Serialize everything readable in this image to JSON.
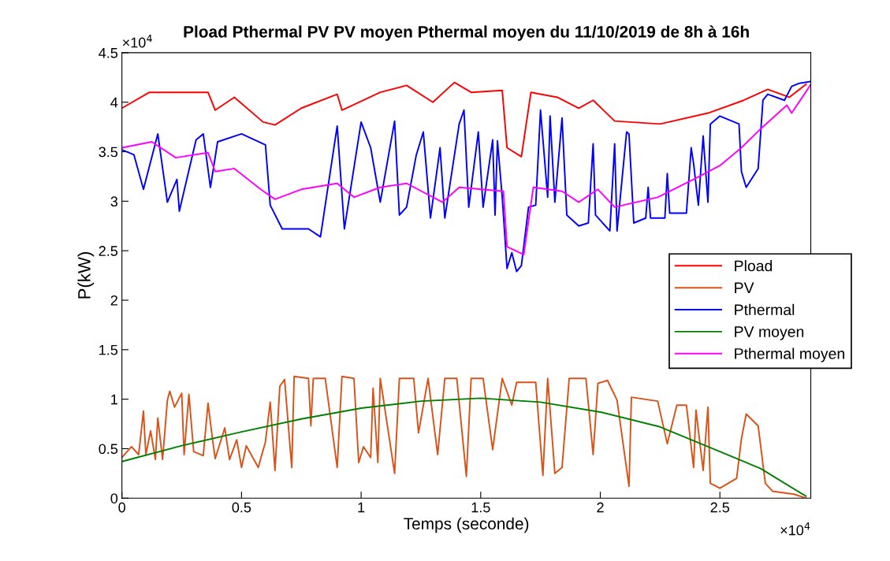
{
  "chart_data": {
    "type": "line",
    "title": "Pload Pthermal PV PV moyen Pthermal moyen du 11/10/2019 de 8h à 16h",
    "xlabel": "Temps (seconde)",
    "ylabel": "P(kW)",
    "annotations": [
      "×10$^{4}$",
      "×10$^{4}$"
    ],
    "xlim": [
      0,
      2.88
    ],
    "ylim": [
      0,
      4.5
    ],
    "xticks": [
      0,
      0.5,
      1,
      1.5,
      2,
      2.5
    ],
    "yticks": [
      0,
      0.5,
      1,
      1.5,
      2,
      2.5,
      3,
      3.5,
      4,
      4.5
    ],
    "grid": false,
    "legend": "right",
    "marker": "none",
    "line_style": "solid",
    "series": [
      {
        "name": "Pload",
        "color": "#ff0000",
        "x": [
          0,
          0.115,
          0.36,
          0.39,
          0.47,
          0.59,
          0.64,
          0.75,
          0.9,
          0.92,
          1.08,
          1.19,
          1.3,
          1.39,
          1.46,
          1.59,
          1.61,
          1.67,
          1.71,
          1.82,
          1.91,
          1.97,
          2.06,
          2.25,
          2.45,
          2.6,
          2.7,
          2.79,
          2.86
        ],
        "values": [
          3.94,
          4.1,
          4.1,
          3.92,
          4.05,
          3.8,
          3.77,
          3.94,
          4.08,
          3.92,
          4.1,
          4.17,
          4.0,
          4.2,
          4.1,
          4.12,
          3.54,
          3.45,
          4.1,
          4.05,
          3.94,
          4.02,
          3.81,
          3.78,
          3.89,
          4.02,
          4.13,
          4.05,
          4.18
        ]
      },
      {
        "name": "PV",
        "color": "#d95319",
        "x": [
          0,
          0.04,
          0.07,
          0.09,
          0.1,
          0.12,
          0.14,
          0.15,
          0.17,
          0.19,
          0.2,
          0.22,
          0.25,
          0.26,
          0.28,
          0.3,
          0.34,
          0.36,
          0.38,
          0.39,
          0.43,
          0.45,
          0.48,
          0.5,
          0.52,
          0.57,
          0.6,
          0.62,
          0.64,
          0.66,
          0.68,
          0.71,
          0.72,
          0.78,
          0.79,
          0.8,
          0.85,
          0.9,
          0.92,
          0.97,
          0.99,
          1.01,
          1.04,
          1.05,
          1.07,
          1.08,
          1.14,
          1.16,
          1.22,
          1.24,
          1.28,
          1.32,
          1.35,
          1.4,
          1.44,
          1.46,
          1.51,
          1.55,
          1.59,
          1.63,
          1.65,
          1.73,
          1.76,
          1.78,
          1.81,
          1.84,
          1.87,
          1.94,
          1.97,
          1.99,
          2.03,
          2.07,
          2.12,
          2.13,
          2.24,
          2.28,
          2.32,
          2.36,
          2.39,
          2.4,
          2.43,
          2.45,
          2.46,
          2.5,
          2.57,
          2.59,
          2.61,
          2.66,
          2.69,
          2.72,
          2.81,
          2.86
        ],
        "values": [
          0.41,
          0.52,
          0.44,
          0.88,
          0.44,
          0.68,
          0.39,
          0.81,
          0.39,
          0.99,
          1.08,
          0.92,
          1.06,
          0.44,
          1.05,
          0.47,
          0.43,
          0.96,
          0.57,
          0.4,
          0.71,
          0.39,
          0.59,
          0.31,
          0.53,
          0.31,
          0.57,
          0.97,
          0.28,
          1.13,
          1.2,
          0.31,
          1.23,
          1.21,
          0.73,
          1.21,
          1.21,
          0.31,
          1.23,
          1.21,
          0.36,
          0.52,
          0.41,
          1.11,
          0.36,
          1.21,
          0.25,
          1.21,
          1.21,
          0.66,
          1.21,
          0.44,
          1.21,
          1.21,
          0.22,
          1.21,
          1.21,
          0.49,
          1.21,
          0.94,
          1.17,
          1.17,
          0.23,
          1.21,
          0.25,
          0.31,
          1.21,
          1.21,
          0.44,
          1.16,
          1.19,
          0.99,
          0.12,
          1.02,
          0.98,
          0.55,
          0.94,
          0.94,
          0.31,
          0.89,
          0.28,
          0.92,
          0.15,
          0.1,
          0.2,
          0.6,
          0.85,
          0.73,
          0.15,
          0.07,
          0.04,
          0.0
        ]
      },
      {
        "name": "Pthermal",
        "color": "#0000ff",
        "x": [
          0,
          0.05,
          0.09,
          0.15,
          0.19,
          0.23,
          0.24,
          0.31,
          0.34,
          0.37,
          0.4,
          0.5,
          0.6,
          0.62,
          0.67,
          0.78,
          0.83,
          0.9,
          0.93,
          1.0,
          1.04,
          1.08,
          1.14,
          1.16,
          1.19,
          1.23,
          1.26,
          1.29,
          1.33,
          1.35,
          1.41,
          1.43,
          1.45,
          1.49,
          1.51,
          1.55,
          1.56,
          1.57,
          1.59,
          1.61,
          1.63,
          1.65,
          1.67,
          1.7,
          1.73,
          1.75,
          1.78,
          1.79,
          1.81,
          1.84,
          1.86,
          1.91,
          1.95,
          1.97,
          1.98,
          2.04,
          2.06,
          2.07,
          2.11,
          2.12,
          2.14,
          2.19,
          2.2,
          2.21,
          2.27,
          2.28,
          2.29,
          2.36,
          2.38,
          2.39,
          2.41,
          2.43,
          2.45,
          2.46,
          2.5,
          2.58,
          2.59,
          2.61,
          2.66,
          2.68,
          2.7,
          2.77,
          2.8,
          2.83,
          2.88
        ],
        "values": [
          3.52,
          3.47,
          3.12,
          3.68,
          2.99,
          3.22,
          2.9,
          3.62,
          3.68,
          3.14,
          3.6,
          3.68,
          3.57,
          2.96,
          2.72,
          2.72,
          2.64,
          3.76,
          2.72,
          3.8,
          3.54,
          2.99,
          3.81,
          2.86,
          2.94,
          3.46,
          3.7,
          2.83,
          3.54,
          2.83,
          3.78,
          3.92,
          2.94,
          3.7,
          2.94,
          3.62,
          2.86,
          3.61,
          3.04,
          2.32,
          2.48,
          2.29,
          2.35,
          2.94,
          2.96,
          3.92,
          3.04,
          3.86,
          2.99,
          3.84,
          2.86,
          2.75,
          2.78,
          3.58,
          2.86,
          2.7,
          3.58,
          2.7,
          3.7,
          3.68,
          2.78,
          2.83,
          3.14,
          2.83,
          2.83,
          3.28,
          2.88,
          2.88,
          3.54,
          3.38,
          2.96,
          3.66,
          2.99,
          3.78,
          3.86,
          3.78,
          3.3,
          3.14,
          3.33,
          4.02,
          4.08,
          4.02,
          4.16,
          4.19,
          4.21
        ]
      },
      {
        "name": "PV moyen",
        "color": "#008000",
        "x": [
          0,
          0.25,
          0.5,
          0.75,
          1.0,
          1.25,
          1.5,
          1.75,
          2.0,
          2.25,
          2.5,
          2.67,
          2.86
        ],
        "values": [
          0.37,
          0.53,
          0.67,
          0.8,
          0.91,
          0.98,
          1.01,
          0.97,
          0.87,
          0.72,
          0.47,
          0.3,
          0.02
        ]
      },
      {
        "name": "Pthermal moyen",
        "color": "#ff00ff",
        "x": [
          0,
          0.125,
          0.225,
          0.36,
          0.39,
          0.47,
          0.58,
          0.64,
          0.75,
          0.9,
          0.97,
          1.08,
          1.19,
          1.34,
          1.41,
          1.595,
          1.61,
          1.68,
          1.72,
          1.84,
          1.91,
          1.99,
          2.06,
          2.24,
          2.39,
          2.5,
          2.59,
          2.67,
          2.78,
          2.8,
          2.88
        ],
        "values": [
          3.54,
          3.6,
          3.44,
          3.49,
          3.3,
          3.33,
          3.12,
          3.02,
          3.12,
          3.18,
          3.04,
          3.14,
          3.18,
          2.99,
          3.14,
          3.1,
          2.54,
          2.46,
          3.14,
          3.1,
          2.99,
          3.12,
          2.94,
          3.04,
          3.22,
          3.36,
          3.54,
          3.73,
          3.97,
          3.89,
          4.18
        ]
      }
    ]
  }
}
